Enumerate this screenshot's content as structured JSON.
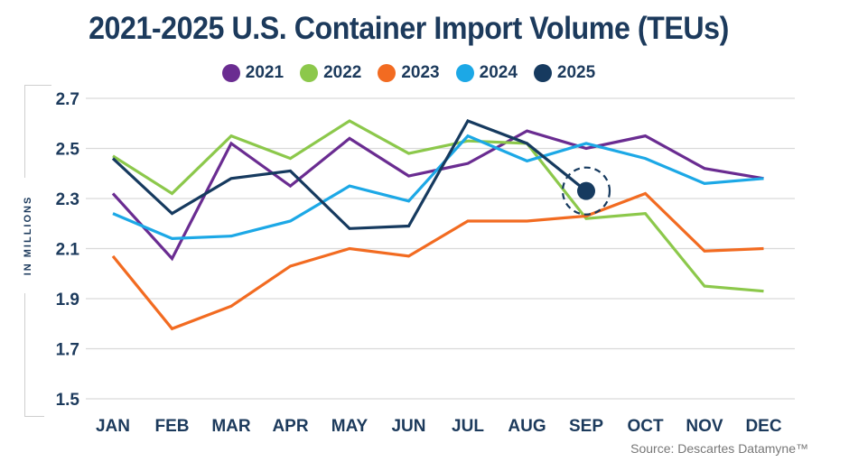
{
  "chart_data": {
    "type": "line",
    "title": "2021-2025 U.S. Container Import Volume (TEUs)",
    "xlabel": "",
    "ylabel": "IN MILLIONS",
    "categories": [
      "JAN",
      "FEB",
      "MAR",
      "APR",
      "MAY",
      "JUN",
      "JUL",
      "AUG",
      "SEP",
      "OCT",
      "NOV",
      "DEC"
    ],
    "ylim": [
      1.5,
      2.7
    ],
    "yticks": [
      "2.7",
      "2.5",
      "2.3",
      "2.1",
      "1.9",
      "1.7",
      "1.5"
    ],
    "ytick_values": [
      2.7,
      2.5,
      2.3,
      2.1,
      1.9,
      1.7,
      1.5
    ],
    "grid": true,
    "legend_position": "top-center",
    "series": [
      {
        "name": "2021",
        "color": "#6a2c91",
        "values": [
          2.32,
          2.06,
          2.52,
          2.35,
          2.54,
          2.39,
          2.44,
          2.57,
          2.5,
          2.55,
          2.42,
          2.38
        ]
      },
      {
        "name": "2022",
        "color": "#8cc84b",
        "values": [
          2.47,
          2.32,
          2.55,
          2.46,
          2.61,
          2.48,
          2.53,
          2.52,
          2.22,
          2.24,
          1.95,
          1.93
        ]
      },
      {
        "name": "2023",
        "color": "#f26b21",
        "values": [
          2.07,
          1.78,
          1.87,
          2.03,
          2.1,
          2.07,
          2.21,
          2.21,
          2.23,
          2.32,
          2.09,
          2.1
        ]
      },
      {
        "name": "2024",
        "color": "#1ca8e6",
        "values": [
          2.24,
          2.14,
          2.15,
          2.21,
          2.35,
          2.29,
          2.55,
          2.45,
          2.52,
          2.46,
          2.36,
          2.38
        ]
      },
      {
        "name": "2025",
        "color": "#163a5f",
        "values": [
          2.46,
          2.24,
          2.38,
          2.41,
          2.18,
          2.19,
          2.61,
          2.52,
          2.33,
          null,
          null,
          null
        ]
      }
    ],
    "annotations": [
      {
        "type": "highlight-marker",
        "series": "2025",
        "category": "SEP",
        "value": 2.33,
        "style": "dashed circle"
      }
    ],
    "source": "Source: Descartes Datamyne™"
  }
}
